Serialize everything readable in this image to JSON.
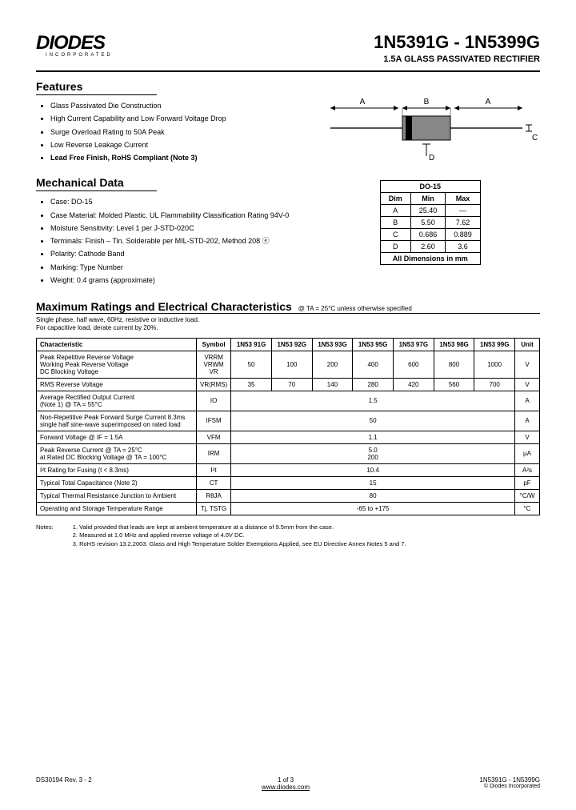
{
  "logo": {
    "main": "DIODES",
    "sub": "INCORPORATED"
  },
  "header": {
    "part_range": "1N5391G - 1N5399G",
    "subtitle": "1.5A GLASS PASSIVATED RECTIFIER"
  },
  "features": {
    "title": "Features",
    "items": [
      "Glass Passivated Die Construction",
      "High Current Capability and Low Forward Voltage Drop",
      "Surge Overload Rating to 50A Peak",
      "Low Reverse Leakage Current",
      "Lead Free Finish, RoHS Compliant (Note 3)"
    ]
  },
  "mechanical": {
    "title": "Mechanical Data",
    "items": [
      "Case: DO-15",
      "Case Material: Molded Plastic. UL Flammability Classification Rating 94V-0",
      "Moisture Sensitivity: Level 1 per J-STD-020C",
      "Terminals: Finish – Tin. Solderable per MIL-STD-202, Method 208 ⓔ",
      "Polarity: Cathode Band",
      "Marking: Type Number",
      "Weight: 0.4 grams (approximate)"
    ]
  },
  "diagram": {
    "labels": {
      "A": "A",
      "B": "B",
      "C": "C",
      "D": "D"
    },
    "colors": {
      "body": "#878787",
      "band": "#000000",
      "lead": "#555555",
      "arrow": "#000000"
    }
  },
  "dim_table": {
    "title": "DO-15",
    "headers": [
      "Dim",
      "Min",
      "Max"
    ],
    "rows": [
      [
        "A",
        "25.40",
        "—"
      ],
      [
        "B",
        "5.50",
        "7.62"
      ],
      [
        "C",
        "0.686",
        "0.889"
      ],
      [
        "D",
        "2.60",
        "3.6"
      ]
    ],
    "footer": "All Dimensions in mm"
  },
  "ratings": {
    "title": "Maximum Ratings and Electrical Characteristics",
    "condition": "@ TA = 25°C unless otherwise specified",
    "load_note1": "Single phase, half wave, 60Hz, resistive or inductive load.",
    "load_note2": "For capacitive load, derate current by 20%.",
    "headers": [
      "Characteristic",
      "Symbol",
      "1N53 91G",
      "1N53 92G",
      "1N53 93G",
      "1N53 95G",
      "1N53 97G",
      "1N53 98G",
      "1N53 99G",
      "Unit"
    ],
    "rows": [
      {
        "char": "Peak Repetitive Reverse Voltage\nWorking Peak Reverse Voltage\nDC Blocking Voltage",
        "sym": "VRRM\nVRWM\nVR",
        "vals": [
          "50",
          "100",
          "200",
          "400",
          "600",
          "800",
          "1000"
        ],
        "unit": "V"
      },
      {
        "char": "RMS Reverse Voltage",
        "sym": "VR(RMS)",
        "vals": [
          "35",
          "70",
          "140",
          "280",
          "420",
          "560",
          "700"
        ],
        "unit": "V"
      },
      {
        "char": "Average Rectified Output Current\n(Note 1)                              @ TA = 55°C",
        "sym": "IO",
        "span": "1.5",
        "unit": "A"
      },
      {
        "char": "Non-Repetitive Peak Forward Surge Current 8.3ms single half sine-wave superimposed on rated load",
        "sym": "IFSM",
        "span": "50",
        "unit": "A"
      },
      {
        "char": "Forward Voltage                    @ IF = 1.5A",
        "sym": "VFM",
        "span": "1.1",
        "unit": "V"
      },
      {
        "char": "Peak Reverse Current            @ TA =   25°C\nat Rated DC Blocking Voltage  @ TA = 100°C",
        "sym": "IRM",
        "span": "5.0\n200",
        "unit": "µA"
      },
      {
        "char": "I²t Rating for Fusing (t < 8.3ms)",
        "sym": "I²t",
        "span": "10.4",
        "unit": "A²s"
      },
      {
        "char": "Typical Total Capacitance (Note 2)",
        "sym": "CT",
        "span": "15",
        "unit": "pF"
      },
      {
        "char": "Typical Thermal Resistance Junction to Ambient",
        "sym": "RθJA",
        "span": "80",
        "unit": "°C/W"
      },
      {
        "char": "Operating and Storage Temperature Range",
        "sym": "Tj, TSTG",
        "span": "-65 to +175",
        "unit": "°C"
      }
    ]
  },
  "notes": {
    "label": "Notes:",
    "items": [
      "Valid provided that leads are kept at ambient temperature at a distance of 9.5mm from the case.",
      "Measured at 1.0 MHz and applied reverse voltage of 4.0V DC.",
      "RoHS revision 13.2.2003. Glass and High Temperature Solder Exemptions Applied, see EU Directive Annex Notes 5 and 7."
    ]
  },
  "footer": {
    "rev": "DS30194 Rev. 3 - 2",
    "page": "1 of 3",
    "url": "www.diodes.com",
    "parts": "1N5391G - 1N5399G",
    "copyright": "© Diodes Incorporated"
  }
}
